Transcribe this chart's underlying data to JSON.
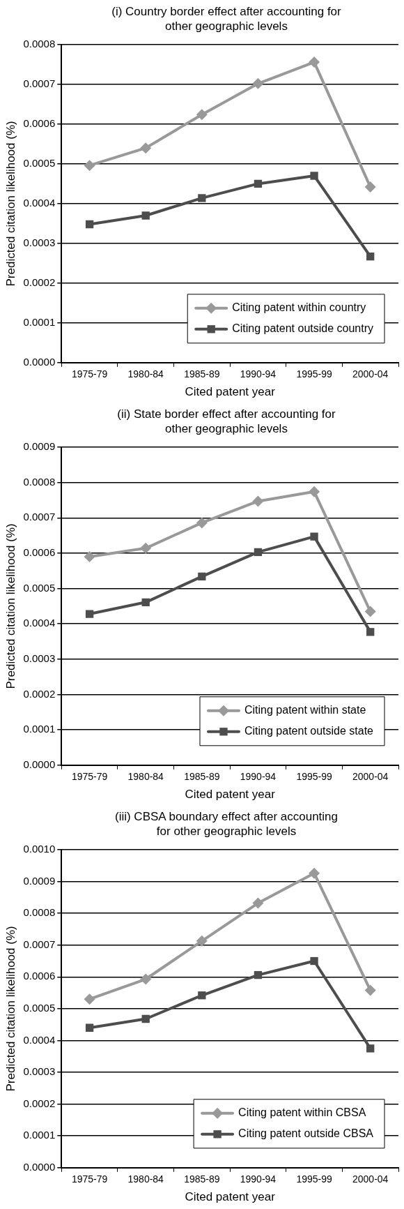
{
  "chart_data": [
    {
      "type": "line",
      "title": "(i) Country border effect after accounting for other geographic levels",
      "xlabel": "Cited patent year",
      "ylabel": "Predicted citation likelihood (%)",
      "categories": [
        "1975-79",
        "1980-84",
        "1985-89",
        "1990-94",
        "1995-99",
        "2000-04"
      ],
      "series": [
        {
          "name": "Citing patent within country",
          "color": "#999999",
          "marker": "diamond",
          "values": [
            0.000496,
            0.00054,
            0.000624,
            0.000702,
            0.000756,
            0.000442
          ]
        },
        {
          "name": "Citing patent outside country",
          "color": "#4d4d4d",
          "marker": "square",
          "values": [
            0.000348,
            0.00037,
            0.000414,
            0.00045,
            0.00047,
            0.000267
          ]
        }
      ],
      "ylim": [
        0,
        0.0008
      ],
      "yticks": [
        {
          "value": 0,
          "label": "0.0000"
        },
        {
          "value": 0.0001,
          "label": "0.0001"
        },
        {
          "value": 0.0002,
          "label": "0.0002"
        },
        {
          "value": 0.0003,
          "label": "0.0003"
        },
        {
          "value": 0.0004,
          "label": "0.0004"
        },
        {
          "value": 0.0005,
          "label": "0.0005"
        },
        {
          "value": 0.0006,
          "label": "0.0006"
        },
        {
          "value": 0.0007,
          "label": "0.0007"
        },
        {
          "value": 0.0008,
          "label": "0.0008"
        }
      ],
      "grid": "y",
      "legend": "bottom right"
    },
    {
      "type": "line",
      "title": "(ii) State border effect after accounting for other geographic levels",
      "xlabel": "Cited patent year",
      "ylabel": "Predicted citation likelihood (%)",
      "categories": [
        "1975-79",
        "1980-84",
        "1985-89",
        "1990-94",
        "1995-99",
        "2000-04"
      ],
      "series": [
        {
          "name": "Citing patent within state",
          "color": "#999999",
          "marker": "diamond",
          "values": [
            0.00059,
            0.000614,
            0.000686,
            0.000747,
            0.000774,
            0.000435
          ]
        },
        {
          "name": "Citing patent outside state",
          "color": "#4d4d4d",
          "marker": "square",
          "values": [
            0.000428,
            0.000461,
            0.000534,
            0.000603,
            0.000647,
            0.000377
          ]
        }
      ],
      "ylim": [
        0,
        0.0009
      ],
      "yticks": [
        {
          "value": 0,
          "label": "0.0000"
        },
        {
          "value": 0.0001,
          "label": "0.0001"
        },
        {
          "value": 0.0002,
          "label": "0.0002"
        },
        {
          "value": 0.0003,
          "label": "0.0003"
        },
        {
          "value": 0.0004,
          "label": "0.0004"
        },
        {
          "value": 0.0005,
          "label": "0.0005"
        },
        {
          "value": 0.0006,
          "label": "0.0006"
        },
        {
          "value": 0.0007,
          "label": "0.0007"
        },
        {
          "value": 0.0008,
          "label": "0.0008"
        },
        {
          "value": 0.0009,
          "label": "0.0009"
        }
      ],
      "grid": "y",
      "legend": "bottom right"
    },
    {
      "type": "line",
      "title": "(iii) CBSA boundary effect after accounting for other geographic levels",
      "xlabel": "Cited patent year",
      "ylabel": "Predicted citation likelihood (%)",
      "categories": [
        "1975-79",
        "1980-84",
        "1985-89",
        "1990-94",
        "1995-99",
        "2000-04"
      ],
      "series": [
        {
          "name": "Citing patent within CBSA",
          "color": "#999999",
          "marker": "diamond",
          "values": [
            0.00053,
            0.000593,
            0.000713,
            0.000832,
            0.000926,
            0.000558
          ]
        },
        {
          "name": "Citing patent outside CBSA",
          "color": "#4d4d4d",
          "marker": "square",
          "values": [
            0.00044,
            0.000468,
            0.000542,
            0.000606,
            0.00065,
            0.000375
          ]
        }
      ],
      "ylim": [
        0,
        0.001
      ],
      "yticks": [
        {
          "value": 0,
          "label": "0.0000"
        },
        {
          "value": 0.0001,
          "label": "0.0001"
        },
        {
          "value": 0.0002,
          "label": "0.0002"
        },
        {
          "value": 0.0003,
          "label": "0.0003"
        },
        {
          "value": 0.0004,
          "label": "0.0004"
        },
        {
          "value": 0.0005,
          "label": "0.0005"
        },
        {
          "value": 0.0006,
          "label": "0.0006"
        },
        {
          "value": 0.0007,
          "label": "0.0007"
        },
        {
          "value": 0.0008,
          "label": "0.0008"
        },
        {
          "value": 0.0009,
          "label": "0.0009"
        },
        {
          "value": 0.001,
          "label": "0.0010"
        }
      ],
      "grid": "y",
      "legend": "bottom right"
    }
  ]
}
